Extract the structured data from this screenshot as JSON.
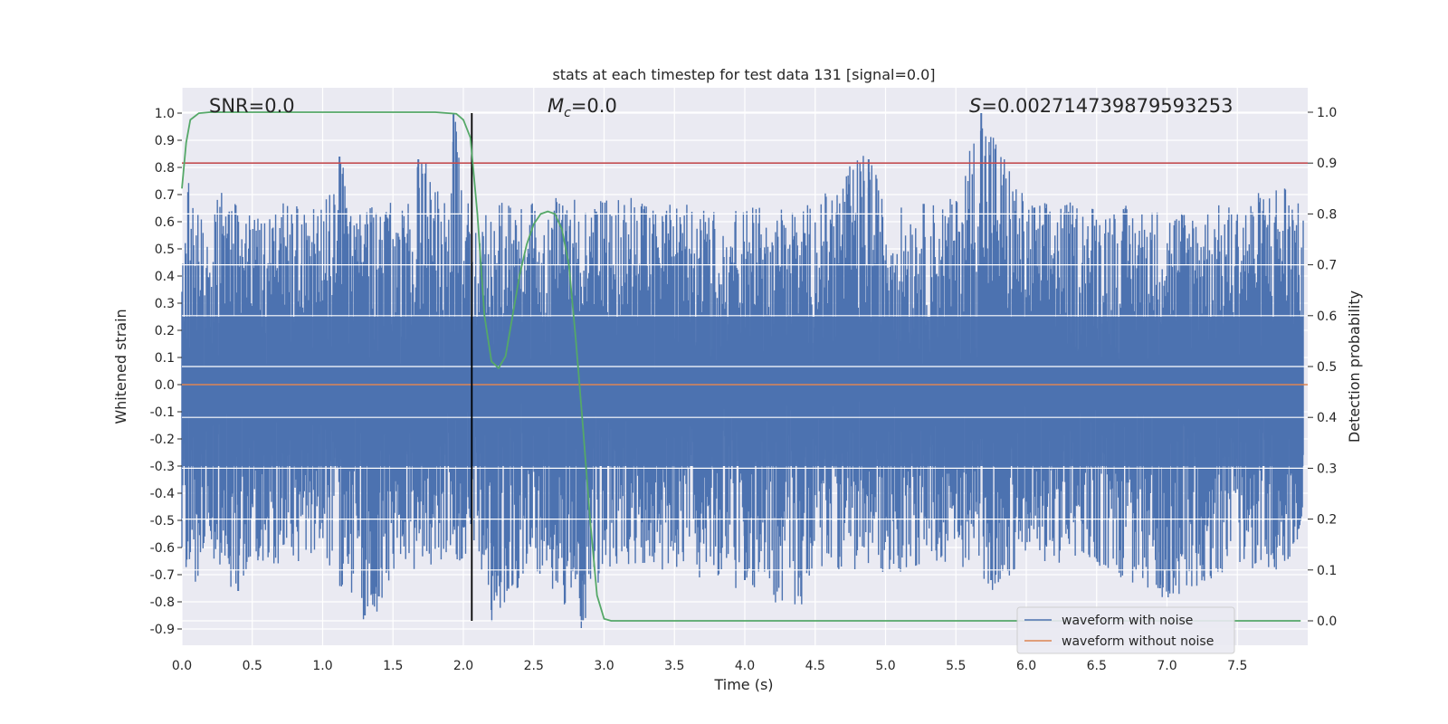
{
  "chart_data": {
    "type": "line",
    "title": "stats at each timestep for test data 131 [signal=0.0]",
    "xlabel": "Time (s)",
    "ylabel": "Whitened strain",
    "y2label": "Detection probability",
    "xlim": [
      0.0,
      8.0
    ],
    "ylim": [
      -0.95,
      1.08
    ],
    "y2lim": [
      -0.05,
      1.03
    ],
    "x_ticks": [
      "0.0",
      "0.5",
      "1.0",
      "1.5",
      "2.0",
      "2.5",
      "3.0",
      "3.5",
      "4.0",
      "4.5",
      "5.0",
      "5.5",
      "6.0",
      "6.5",
      "7.0",
      "7.5"
    ],
    "y_ticks": [
      "1.0",
      "0.9",
      "0.8",
      "0.7",
      "0.6",
      "0.5",
      "0.4",
      "0.3",
      "0.2",
      "0.1",
      "0.0",
      "-0.1",
      "-0.2",
      "-0.3",
      "-0.4",
      "-0.5",
      "-0.6",
      "-0.7",
      "-0.8",
      "-0.9"
    ],
    "y2_ticks": [
      "1.0",
      "0.9",
      "0.8",
      "0.7",
      "0.6",
      "0.5",
      "0.4",
      "0.3",
      "0.2",
      "0.1",
      "0.0"
    ],
    "grid": true,
    "legend_position": "lower-right",
    "annotations": {
      "snr": "SNR=0.0",
      "mc_symbol": "M",
      "mc_sub": "c",
      "mc_value": "=0.0",
      "s_symbol": "S",
      "s_value": "=0.002714739879593253"
    },
    "series": [
      {
        "name": "waveform with noise",
        "color": "#4c72b0",
        "style": "dense noise",
        "envelope_upper": [
          [
            0.0,
            0.55
          ],
          [
            0.05,
            0.7
          ],
          [
            0.1,
            0.63
          ],
          [
            0.2,
            0.6
          ],
          [
            0.3,
            0.68
          ],
          [
            0.4,
            0.6
          ],
          [
            0.5,
            0.6
          ],
          [
            0.7,
            0.62
          ],
          [
            0.9,
            0.6
          ],
          [
            1.0,
            0.62
          ],
          [
            1.1,
            0.69
          ],
          [
            1.12,
            0.84
          ],
          [
            1.2,
            0.62
          ],
          [
            1.5,
            0.62
          ],
          [
            1.65,
            0.62
          ],
          [
            1.68,
            0.83
          ],
          [
            1.9,
            0.6
          ],
          [
            1.93,
            1.0
          ],
          [
            2.0,
            0.62
          ],
          [
            2.5,
            0.62
          ],
          [
            2.6,
            0.64
          ],
          [
            3.0,
            0.65
          ],
          [
            3.5,
            0.62
          ],
          [
            4.0,
            0.6
          ],
          [
            4.5,
            0.62
          ],
          [
            4.88,
            0.83
          ],
          [
            5.0,
            0.6
          ],
          [
            5.5,
            0.64
          ],
          [
            5.68,
            1.0
          ],
          [
            6.0,
            0.63
          ],
          [
            6.5,
            0.62
          ],
          [
            7.0,
            0.6
          ],
          [
            7.5,
            0.62
          ],
          [
            7.85,
            0.72
          ],
          [
            7.95,
            0.6
          ]
        ],
        "envelope_lower": [
          [
            0.0,
            -0.6
          ],
          [
            0.1,
            -0.68
          ],
          [
            0.2,
            -0.58
          ],
          [
            0.4,
            -0.76
          ],
          [
            0.5,
            -0.6
          ],
          [
            0.8,
            -0.62
          ],
          [
            1.0,
            -0.6
          ],
          [
            1.3,
            -0.85
          ],
          [
            1.4,
            -0.78
          ],
          [
            1.5,
            -0.65
          ],
          [
            2.0,
            -0.6
          ],
          [
            2.05,
            -0.55
          ],
          [
            2.1,
            -0.6
          ],
          [
            2.2,
            -0.83
          ],
          [
            2.5,
            -0.62
          ],
          [
            2.85,
            -0.87
          ],
          [
            3.0,
            -0.62
          ],
          [
            3.5,
            -0.65
          ],
          [
            4.0,
            -0.72
          ],
          [
            4.4,
            -0.78
          ],
          [
            4.5,
            -0.62
          ],
          [
            5.0,
            -0.65
          ],
          [
            5.5,
            -0.6
          ],
          [
            5.75,
            -0.72
          ],
          [
            6.0,
            -0.6
          ],
          [
            6.5,
            -0.62
          ],
          [
            6.95,
            -0.75
          ],
          [
            7.2,
            -0.7
          ],
          [
            7.5,
            -0.62
          ],
          [
            7.85,
            -0.65
          ],
          [
            7.95,
            -0.55
          ]
        ]
      },
      {
        "name": "waveform without noise",
        "color": "#dd8452",
        "x": [
          0.0,
          8.0
        ],
        "y": [
          0.0,
          0.0
        ]
      },
      {
        "name": "detection probability",
        "axis": "right",
        "color": "#55a868",
        "x": [
          0.0,
          0.03,
          0.06,
          0.12,
          0.2,
          0.5,
          1.0,
          1.5,
          1.8,
          1.95,
          2.0,
          2.05,
          2.1,
          2.15,
          2.2,
          2.25,
          2.3,
          2.35,
          2.4,
          2.45,
          2.5,
          2.55,
          2.6,
          2.65,
          2.7,
          2.75,
          2.8,
          2.85,
          2.9,
          2.95,
          3.0,
          3.05,
          3.1,
          3.5,
          4.0,
          5.0,
          6.0,
          7.0,
          7.95
        ],
        "y": [
          0.85,
          0.94,
          0.985,
          0.998,
          1.0,
          1.0,
          1.0,
          1.0,
          1.0,
          0.997,
          0.985,
          0.95,
          0.8,
          0.6,
          0.51,
          0.497,
          0.52,
          0.6,
          0.68,
          0.74,
          0.78,
          0.8,
          0.805,
          0.8,
          0.77,
          0.7,
          0.55,
          0.38,
          0.2,
          0.05,
          0.004,
          0.0,
          0.0,
          0.0,
          0.0,
          0.0,
          0.0,
          0.0,
          0.0
        ]
      }
    ],
    "reference_lines": {
      "threshold_y2": 0.9,
      "threshold_color": "#c44e52",
      "vertical_x": 2.06,
      "vertical_color": "#000000",
      "vertical_y_range": [
        -0.87,
        1.0
      ]
    }
  }
}
